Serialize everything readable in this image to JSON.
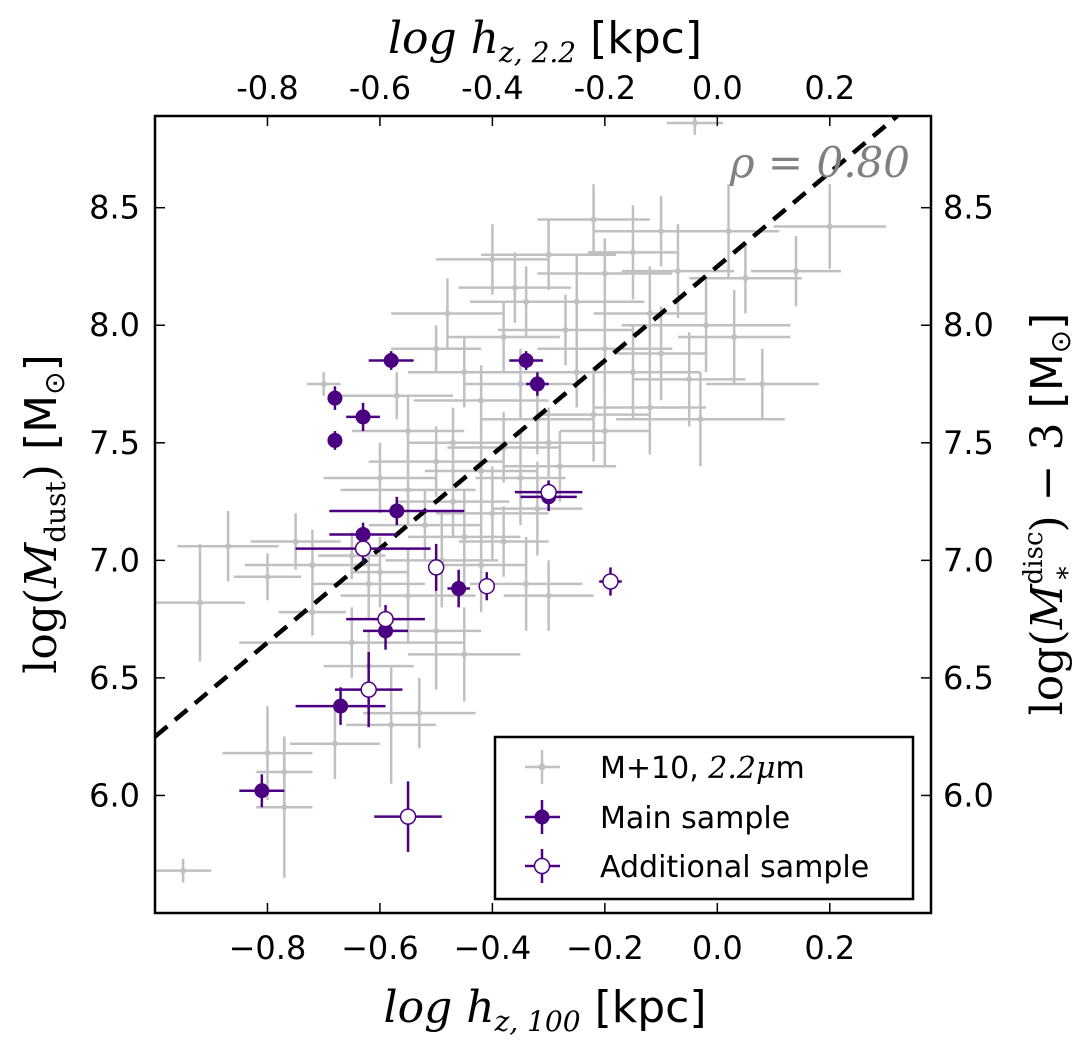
{
  "chart_data": {
    "type": "scatter",
    "title": "",
    "xlabel": {
      "math": "log h",
      "sub": "z, 100",
      "unit": "[kpc]"
    },
    "x2label": {
      "math": "log h",
      "sub": "z, 2.2",
      "unit": "[kpc]"
    },
    "ylabel": {
      "pre": "log(",
      "var": "M",
      "sub": "dust",
      "post": ")",
      "unit": "[M",
      "sun": "⊙",
      "close": "]"
    },
    "y2label": {
      "pre": "log(",
      "var": "M",
      "sup": "disc",
      "sub": "*",
      "post": ") − 3",
      "unit": "[M",
      "sun": "⊙",
      "close": "]"
    },
    "xlim": [
      -1.0,
      0.38
    ],
    "ylim": [
      5.5,
      8.89
    ],
    "x2lim": [
      -1.0,
      0.38
    ],
    "y2lim": [
      5.5,
      8.89
    ],
    "xticks": [
      -0.8,
      -0.6,
      -0.4,
      -0.2,
      0.0,
      0.2
    ],
    "xtick_labels": [
      "−0.8",
      "−0.6",
      "−0.4",
      "−0.2",
      "0.0",
      "0.2"
    ],
    "x2tick_labels": [
      "-0.8",
      "-0.6",
      "-0.4",
      "-0.2",
      "0.0",
      "0.2"
    ],
    "yticks": [
      6.0,
      6.5,
      7.0,
      7.5,
      8.0,
      8.5
    ],
    "ytick_labels": [
      "6.0",
      "6.5",
      "7.0",
      "7.5",
      "8.0",
      "8.5"
    ],
    "y2tick_labels": [
      "6.0",
      "6.5",
      "7.0",
      "7.5",
      "8.0",
      "8.5"
    ],
    "annotation": {
      "text": "ρ = 0.80",
      "color": "#808080"
    },
    "fit_line": {
      "x": [
        -1.0,
        0.32
      ],
      "y": [
        6.25,
        8.89
      ],
      "style": "dashed",
      "color": "#000000"
    },
    "colors": {
      "grey": "#c0c0c0",
      "purple": "#4b0082",
      "frame": "#000000"
    },
    "legend": {
      "location": "lower right",
      "entries": [
        {
          "label": "M+10, ",
          "math": "2.2μ",
          "suffix": "m",
          "style": "grey"
        },
        {
          "label": "Main sample",
          "style": "filled"
        },
        {
          "label": "Additional sample",
          "style": "open"
        }
      ]
    },
    "series": [
      {
        "name": "M+10, 2.2μm",
        "marker": "small-dot",
        "color": "#c0c0c0",
        "points": [
          [
            -0.04,
            8.86,
            0.05,
            0.05
          ],
          [
            0.2,
            8.42,
            0.1,
            0.18
          ],
          [
            -0.22,
            8.45,
            0.1,
            0.15
          ],
          [
            -0.1,
            8.4,
            0.12,
            0.15
          ],
          [
            0.02,
            8.4,
            0.09,
            0.2
          ],
          [
            -0.3,
            8.3,
            0.12,
            0.15
          ],
          [
            -0.4,
            8.28,
            0.1,
            0.15
          ],
          [
            -0.36,
            8.16,
            0.1,
            0.15
          ],
          [
            -0.15,
            8.31,
            0.08,
            0.2
          ],
          [
            0.14,
            8.23,
            0.08,
            0.15
          ],
          [
            -0.2,
            8.22,
            0.12,
            0.15
          ],
          [
            -0.07,
            8.23,
            0.1,
            0.2
          ],
          [
            0.05,
            8.2,
            0.1,
            0.15
          ],
          [
            -0.48,
            8.05,
            0.1,
            0.15
          ],
          [
            -0.34,
            8.1,
            0.1,
            0.15
          ],
          [
            -0.25,
            8.1,
            0.12,
            0.2
          ],
          [
            -0.12,
            8.05,
            0.1,
            0.2
          ],
          [
            -0.02,
            8.0,
            0.15,
            0.2
          ],
          [
            0.03,
            7.95,
            0.1,
            0.2
          ],
          [
            -0.27,
            7.98,
            0.12,
            0.15
          ],
          [
            -0.2,
            7.9,
            0.12,
            0.2
          ],
          [
            -0.1,
            7.88,
            0.08,
            0.2
          ],
          [
            -0.38,
            7.95,
            0.1,
            0.15
          ],
          [
            -0.5,
            7.9,
            0.08,
            0.1
          ],
          [
            -0.45,
            7.8,
            0.1,
            0.15
          ],
          [
            -0.35,
            7.75,
            0.1,
            0.15
          ],
          [
            -0.25,
            7.8,
            0.1,
            0.15
          ],
          [
            -0.15,
            7.8,
            0.12,
            0.2
          ],
          [
            -0.05,
            7.77,
            0.1,
            0.2
          ],
          [
            0.08,
            7.75,
            0.1,
            0.15
          ],
          [
            -0.7,
            7.75,
            0.03,
            0.05
          ],
          [
            -0.57,
            7.7,
            0.1,
            0.1
          ],
          [
            -0.42,
            7.68,
            0.12,
            0.15
          ],
          [
            -0.32,
            7.6,
            0.1,
            0.15
          ],
          [
            -0.22,
            7.62,
            0.1,
            0.2
          ],
          [
            -0.12,
            7.65,
            0.1,
            0.2
          ],
          [
            -0.03,
            7.6,
            0.15,
            0.2
          ],
          [
            -0.55,
            7.55,
            0.1,
            0.15
          ],
          [
            -0.47,
            7.5,
            0.08,
            0.15
          ],
          [
            -0.38,
            7.48,
            0.1,
            0.15
          ],
          [
            -0.3,
            7.5,
            0.1,
            0.15
          ],
          [
            -0.2,
            7.55,
            0.08,
            0.15
          ],
          [
            -0.5,
            7.42,
            0.12,
            0.15
          ],
          [
            -0.42,
            7.38,
            0.1,
            0.2
          ],
          [
            -0.35,
            7.35,
            0.08,
            0.2
          ],
          [
            -0.28,
            7.4,
            0.1,
            0.15
          ],
          [
            -0.6,
            7.35,
            0.1,
            0.15
          ],
          [
            -0.55,
            7.3,
            0.12,
            0.15
          ],
          [
            -0.47,
            7.25,
            0.1,
            0.15
          ],
          [
            -0.4,
            7.2,
            0.1,
            0.2
          ],
          [
            -0.32,
            7.22,
            0.08,
            0.2
          ],
          [
            -0.52,
            7.15,
            0.1,
            0.15
          ],
          [
            -0.45,
            7.1,
            0.1,
            0.2
          ],
          [
            -0.38,
            7.08,
            0.08,
            0.15
          ],
          [
            -0.49,
            7.0,
            0.1,
            0.2
          ],
          [
            -0.42,
            6.98,
            0.08,
            0.2
          ],
          [
            -0.65,
            7.02,
            0.06,
            0.1
          ],
          [
            -0.75,
            7.08,
            0.08,
            0.12
          ],
          [
            -0.87,
            7.06,
            0.09,
            0.15
          ],
          [
            -0.72,
            6.98,
            0.12,
            0.15
          ],
          [
            -0.6,
            6.95,
            0.05,
            0.15
          ],
          [
            -0.8,
            6.93,
            0.06,
            0.1
          ],
          [
            -0.62,
            6.9,
            0.1,
            0.15
          ],
          [
            -0.55,
            6.85,
            0.12,
            0.2
          ],
          [
            -0.34,
            6.9,
            0.1,
            0.2
          ],
          [
            -0.3,
            6.85,
            0.08,
            0.15
          ],
          [
            -0.92,
            6.82,
            0.08,
            0.25
          ],
          [
            -0.72,
            6.78,
            0.06,
            0.1
          ],
          [
            -0.65,
            6.65,
            0.2,
            0.15
          ],
          [
            -0.5,
            6.7,
            0.08,
            0.25
          ],
          [
            -0.45,
            6.6,
            0.1,
            0.2
          ],
          [
            -0.62,
            6.55,
            0.08,
            0.15
          ],
          [
            -0.53,
            6.35,
            0.1,
            0.15
          ],
          [
            -0.58,
            6.3,
            0.08,
            0.25
          ],
          [
            -0.68,
            6.22,
            0.08,
            0.15
          ],
          [
            -0.8,
            6.18,
            0.08,
            0.2
          ],
          [
            -0.77,
            6.1,
            0.05,
            0.15
          ],
          [
            -0.77,
            5.95,
            0.05,
            0.3
          ],
          [
            -0.95,
            5.68,
            0.05,
            0.05
          ]
        ]
      },
      {
        "name": "Main sample",
        "marker": "filled",
        "color": "#4b0082",
        "points": [
          [
            -0.81,
            6.02,
            0.04,
            0.07
          ],
          [
            -0.67,
            6.38,
            0.08,
            0.08
          ],
          [
            -0.59,
            6.7,
            0.04,
            0.08
          ],
          [
            -0.46,
            6.88,
            0.02,
            0.08
          ],
          [
            -0.63,
            7.11,
            0.06,
            0.05
          ],
          [
            -0.57,
            7.21,
            0.12,
            0.06
          ],
          [
            -0.3,
            7.27,
            0.05,
            0.06
          ],
          [
            -0.68,
            7.51,
            0.01,
            0.04
          ],
          [
            -0.63,
            7.61,
            0.03,
            0.06
          ],
          [
            -0.68,
            7.69,
            0.01,
            0.05
          ],
          [
            -0.58,
            7.85,
            0.04,
            0.04
          ],
          [
            -0.34,
            7.85,
            0.03,
            0.04
          ],
          [
            -0.32,
            7.75,
            0.02,
            0.05
          ]
        ]
      },
      {
        "name": "Additional sample",
        "marker": "open",
        "color": "#4b0082",
        "points": [
          [
            -0.55,
            5.91,
            0.06,
            0.15
          ],
          [
            -0.62,
            6.45,
            0.06,
            0.16
          ],
          [
            -0.59,
            6.75,
            0.07,
            0.06
          ],
          [
            -0.63,
            7.05,
            0.12,
            0.06
          ],
          [
            -0.5,
            6.97,
            0.01,
            0.1
          ],
          [
            -0.41,
            6.89,
            0.01,
            0.06
          ],
          [
            -0.3,
            7.29,
            0.06,
            0.05
          ],
          [
            -0.19,
            6.91,
            0.02,
            0.06
          ]
        ]
      }
    ]
  }
}
